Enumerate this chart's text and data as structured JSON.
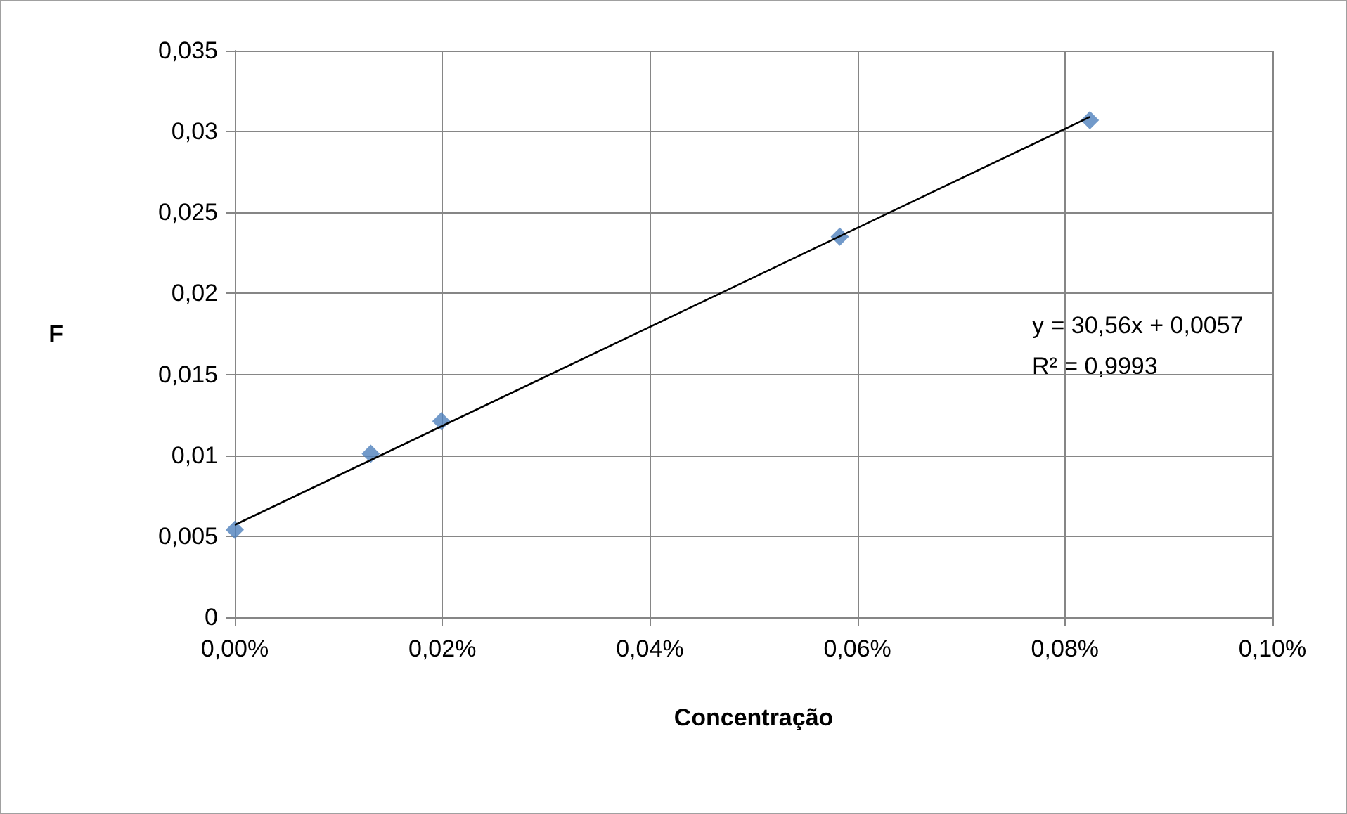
{
  "chart_data": {
    "type": "scatter",
    "xlabel": "Concentração",
    "ylabel": "F",
    "xlim": [
      0,
      0.1
    ],
    "xticks": [
      {
        "value": 0,
        "label": "0,00%"
      },
      {
        "value": 0.02,
        "label": "0,02%"
      },
      {
        "value": 0.04,
        "label": "0,04%"
      },
      {
        "value": 0.06,
        "label": "0,06%"
      },
      {
        "value": 0.08,
        "label": "0,08%"
      },
      {
        "value": 0.1,
        "label": "0,10%"
      }
    ],
    "ylim": [
      0,
      0.035
    ],
    "yticks": [
      0,
      {
        "value": 0.005,
        "label": "0,005"
      },
      {
        "value": 0.01,
        "label": "0,01"
      },
      {
        "value": 0.015,
        "label": "0,015"
      },
      {
        "value": 0.02,
        "label": "0,02"
      },
      {
        "value": 0.025,
        "label": "0,025"
      },
      {
        "value": 0.03,
        "label": "0,03"
      },
      {
        "value": 0.035,
        "label": "0,035"
      }
    ],
    "grid": true,
    "series": [
      {
        "marker": "diamond",
        "color": "#4f81bd",
        "x": [
          0,
          0.0131,
          0.0199,
          0.0583,
          0.0824
        ],
        "values": [
          0.0054,
          0.0101,
          0.0121,
          0.0235,
          0.0307
        ]
      },
      {
        "type": "line",
        "marker": "none",
        "color": "#000000",
        "x": [
          0,
          0.0824
        ],
        "values": [
          0.0057,
          0.0309
        ]
      }
    ],
    "annotations": [
      "y = 30,56x + 0,0057",
      "R² = 0,9993"
    ]
  }
}
